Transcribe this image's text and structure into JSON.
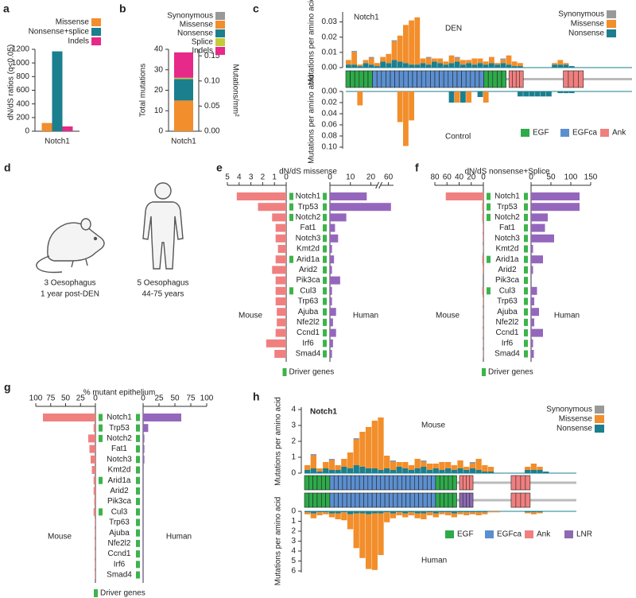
{
  "chart_data": [
    {
      "type": "bar",
      "panel": "a",
      "ylabel": "dN/dS ratios (q<0.05)",
      "categories": [
        "Notch1"
      ],
      "series": [
        {
          "name": "Missense",
          "color": "#f28e2b",
          "values": [
            120
          ]
        },
        {
          "name": "Nonsense+splice",
          "color": "#1b7f8e",
          "values": [
            1170
          ]
        },
        {
          "name": "Indels",
          "color": "#e7298a",
          "values": [
            70
          ]
        }
      ],
      "ylim": [
        0,
        1200
      ],
      "yticks": [
        0,
        200,
        400,
        600,
        800,
        1000,
        1200
      ]
    },
    {
      "type": "stacked-bar",
      "panel": "b",
      "ylabel": "Total mutations",
      "y2label": "Mutations/mm²",
      "categories": [
        "Notch1"
      ],
      "series": [
        {
          "name": "Synonymous",
          "color": "#999999",
          "values": [
            0
          ]
        },
        {
          "name": "Missense",
          "color": "#f28e2b",
          "values": [
            15
          ]
        },
        {
          "name": "Nonsense",
          "color": "#1b7f8e",
          "values": [
            10.5
          ]
        },
        {
          "name": "Splice",
          "color": "#c5c93a",
          "values": [
            0.6
          ]
        },
        {
          "name": "Indels",
          "color": "#e7298a",
          "values": [
            12.4
          ]
        }
      ],
      "ylim": [
        0,
        40
      ],
      "yticks": [
        0,
        10,
        20,
        30,
        40
      ],
      "y2lim": [
        0,
        0.163
      ],
      "y2ticks": [
        {
          "value": 0,
          "label": "0.00"
        },
        0.05,
        {
          "value": 0.1,
          "label": "0.10"
        },
        0.15
      ]
    },
    {
      "type": "mirror-histogram",
      "panel": "c",
      "gene": "Notch1",
      "ylabel": "Mutations per amino acid",
      "domains": [
        {
          "name": "EGF",
          "color": "#2eaa4a"
        },
        {
          "name": "EGFca",
          "color": "#5b8fd0"
        },
        {
          "name": "Ank",
          "color": "#f07f7f"
        }
      ],
      "top": {
        "name": "DEN",
        "ylim": [
          0,
          0.035
        ],
        "yticks": [
          {
            "value": 0,
            "label": "0.00"
          },
          0.01,
          0.02,
          0.03
        ],
        "series": [
          {
            "name": "Synonymous",
            "color": "#999999",
            "values": [
              0,
              0.001,
              0,
              0,
              0.001,
              0,
              0,
              0,
              0.001,
              0,
              0,
              0,
              0,
              0,
              0.001,
              0,
              0,
              0,
              0,
              0.001,
              0,
              0,
              0,
              0,
              0,
              0,
              0,
              0.001,
              0,
              0,
              0,
              0,
              0,
              0,
              0,
              0,
              0,
              0,
              0,
              0
            ]
          },
          {
            "name": "Missense",
            "color": "#f28e2b",
            "values": [
              0.003,
              0.008,
              0.001,
              0.002,
              0.004,
              0.002,
              0.003,
              0.006,
              0.012,
              0.017,
              0.025,
              0.029,
              0.031,
              0.003,
              0.004,
              0.002,
              0.003,
              0.002,
              0.005,
              0.002,
              0.003,
              0.002,
              0.004,
              0.003,
              0.002,
              0.004,
              0.001,
              0.002,
              0.006,
              0.003,
              0.002,
              0,
              0,
              0,
              0,
              0,
              0.001,
              0.003,
              0.001,
              0
            ]
          },
          {
            "name": "Nonsense",
            "color": "#1b7f8e",
            "values": [
              0.002,
              0.002,
              0.001,
              0.003,
              0.002,
              0.001,
              0.004,
              0.003,
              0.005,
              0.004,
              0.003,
              0.002,
              0.002,
              0.003,
              0.002,
              0.004,
              0.003,
              0.002,
              0.003,
              0.004,
              0.002,
              0.003,
              0.002,
              0.003,
              0.002,
              0.003,
              0.002,
              0.003,
              0.002,
              0.001,
              0.001,
              0,
              0,
              0,
              0,
              0,
              0.002,
              0.002,
              0.002,
              0.001
            ]
          }
        ]
      },
      "bottom": {
        "name": "Control",
        "ylim": [
          0,
          0.1
        ],
        "yticks": [
          {
            "value": 0,
            "label": "0.00"
          },
          0.02,
          0.04,
          0.06,
          0.08,
          {
            "value": 0.1,
            "label": "0.10"
          }
        ],
        "series": [
          {
            "color": "#f28e2b",
            "values": [
              0,
              0,
              0.025,
              0,
              0,
              0,
              0,
              0,
              0,
              0.055,
              0.098,
              0.052,
              0,
              0,
              0,
              0,
              0,
              0,
              0,
              0.02,
              0,
              0.02,
              0,
              0,
              0.02,
              0,
              0,
              0,
              0,
              0,
              0,
              0,
              0,
              0,
              0,
              0,
              0,
              0,
              0,
              0
            ]
          },
          {
            "color": "#1b7f8e",
            "values": [
              0,
              0,
              0,
              0,
              0,
              0,
              0,
              0,
              0,
              0,
              0,
              0,
              0,
              0,
              0,
              0,
              0,
              0,
              0.02,
              0,
              0.02,
              0,
              0,
              0.01,
              0,
              0,
              0,
              0,
              0,
              0,
              0.009,
              0.009,
              0.009,
              0.009,
              0.009,
              0.009,
              0,
              0.003,
              0.003,
              0.003
            ]
          }
        ]
      }
    },
    {
      "type": "butterfly",
      "panel": "e",
      "title": "dN/dS missense",
      "driver_legend": "Driver genes",
      "driver_color": "#3cb44b",
      "genes": [
        "Notch1",
        "Trp53",
        "Notch2",
        "Fat1",
        "Notch3",
        "Kmt2d",
        "Arid1a",
        "Arid2",
        "Pik3ca",
        "Cul3",
        "Trp63",
        "Ajuba",
        "Nfe2l2",
        "Ccnd1",
        "Irf6",
        "Smad4"
      ],
      "left": {
        "name": "Mouse",
        "color": "#f08080",
        "xlim": [
          0,
          5
        ],
        "xticks": [
          5,
          4,
          3,
          2,
          1,
          0
        ],
        "values": [
          4.2,
          2.4,
          1.2,
          0.9,
          0.9,
          0.7,
          0.9,
          1.2,
          0.9,
          0.9,
          0.9,
          0.8,
          0.8,
          0.9,
          1.7,
          1.0
        ],
        "drivers": [
          true,
          true,
          true,
          false,
          false,
          false,
          true,
          false,
          false,
          true,
          false,
          false,
          false,
          false,
          false,
          false
        ]
      },
      "right": {
        "name": "Human",
        "color": "#9467bd",
        "xlim": [
          0,
          62
        ],
        "break": [
          23,
          57
        ],
        "xticks": [
          0,
          10,
          20,
          60
        ],
        "values": [
          18,
          61,
          8,
          2.5,
          4,
          1,
          2,
          1,
          5,
          1,
          1,
          3,
          1.5,
          3,
          1.5,
          1
        ],
        "drivers": [
          true,
          true,
          true,
          true,
          true,
          true,
          true,
          true,
          true,
          true,
          true,
          true,
          true,
          true,
          true,
          true
        ]
      }
    },
    {
      "type": "butterfly",
      "panel": "f",
      "title": "dN/dS nonsense+Splice",
      "driver_legend": "Driver genes",
      "driver_color": "#3cb44b",
      "genes": [
        "Notch1",
        "Trp53",
        "Notch2",
        "Fat1",
        "Notch3",
        "Kmt2d",
        "Arid1a",
        "Arid2",
        "Pik3ca",
        "Cul3",
        "Trp63",
        "Ajuba",
        "Nfe2l2",
        "Ccnd1",
        "Irf6",
        "Smad4"
      ],
      "left": {
        "name": "Mouse",
        "color": "#f08080",
        "xlim": [
          0,
          80
        ],
        "xticks": [
          80,
          60,
          40,
          20,
          0
        ],
        "values": [
          62,
          2,
          2,
          1,
          1,
          0.5,
          2,
          1,
          0,
          2,
          0.5,
          0.5,
          0.5,
          0.5,
          0.5,
          0.5
        ],
        "drivers": [
          true,
          true,
          true,
          false,
          false,
          false,
          true,
          false,
          false,
          true,
          false,
          false,
          false,
          false,
          false,
          false
        ]
      },
      "right": {
        "name": "Human",
        "color": "#9467bd",
        "xlim": [
          0,
          150
        ],
        "xticks": [
          0,
          50,
          100,
          150
        ],
        "values": [
          122,
          122,
          42,
          35,
          58,
          5,
          30,
          5,
          0,
          15,
          8,
          20,
          8,
          30,
          5,
          7
        ],
        "drivers": [
          true,
          true,
          true,
          true,
          true,
          true,
          true,
          true,
          true,
          true,
          true,
          true,
          true,
          true,
          true,
          true
        ]
      }
    },
    {
      "type": "butterfly",
      "panel": "g",
      "title": "% mutant epithelium",
      "driver_legend": "Driver genes",
      "driver_color": "#3cb44b",
      "genes": [
        "Notch1",
        "Trp53",
        "Notch2",
        "Fat1",
        "Notch3",
        "Kmt2d",
        "Arid1a",
        "Arid2",
        "Pik3ca",
        "Cul3",
        "Trp63",
        "Ajuba",
        "Nfe2l2",
        "Ccnd1",
        "Irf6",
        "Smad4"
      ],
      "left": {
        "name": "Mouse",
        "color": "#f08080",
        "xlim": [
          0,
          100
        ],
        "xticks": [
          100,
          75,
          50,
          25,
          0
        ],
        "values": [
          88,
          3,
          12,
          10,
          8,
          6,
          3,
          3,
          2,
          3,
          1,
          1,
          1,
          1,
          1,
          1
        ],
        "drivers": [
          true,
          true,
          true,
          false,
          false,
          false,
          true,
          false,
          false,
          true,
          false,
          false,
          false,
          false,
          false,
          false
        ]
      },
      "right": {
        "name": "Human",
        "color": "#9467bd",
        "xlim": [
          0,
          100
        ],
        "xticks": [
          0,
          25,
          50,
          75,
          100
        ],
        "values": [
          60,
          8,
          2,
          2,
          2,
          1,
          1,
          1,
          1,
          1,
          1,
          1,
          1,
          1,
          1,
          1
        ],
        "drivers": [
          true,
          true,
          true,
          true,
          true,
          true,
          true,
          true,
          true,
          true,
          true,
          true,
          true,
          true,
          true,
          true
        ]
      }
    },
    {
      "type": "mirror-histogram",
      "panel": "h",
      "gene": "Notch1",
      "ylabel": "Mutations per amino acid",
      "domains": [
        {
          "name": "EGF",
          "color": "#2eaa4a"
        },
        {
          "name": "EGFca",
          "color": "#5b8fd0"
        },
        {
          "name": "Ank",
          "color": "#f07f7f"
        },
        {
          "name": "LNR",
          "color": "#8c6bb1"
        }
      ],
      "top": {
        "name": "Mouse",
        "ylim": [
          0,
          4
        ],
        "yticks": [
          0,
          1,
          2,
          3,
          4
        ],
        "series": [
          {
            "name": "Synonymous",
            "color": "#999999",
            "values": [
              0,
              0.1,
              0,
              0,
              0.1,
              0,
              0,
              0,
              0.1,
              0,
              0,
              0,
              0,
              0,
              0.1,
              0,
              0,
              0,
              0,
              0.1,
              0,
              0,
              0,
              0,
              0,
              0,
              0,
              0.1,
              0,
              0,
              0,
              0,
              0,
              0,
              0,
              0,
              0,
              0,
              0,
              0
            ]
          },
          {
            "name": "Missense",
            "color": "#f28e2b",
            "values": [
              0.3,
              0.8,
              0.2,
              0.4,
              0.6,
              0.3,
              0.5,
              1.0,
              1.6,
              2.2,
              2.6,
              3.0,
              3.3,
              0.8,
              0.5,
              0.3,
              0.4,
              0.3,
              0.6,
              0.3,
              0.4,
              0.3,
              0.5,
              0.4,
              0.3,
              0.5,
              0.2,
              0.3,
              0.7,
              0.4,
              0.3,
              0,
              0,
              0,
              0,
              0,
              0.2,
              0.4,
              0.2,
              0
            ]
          },
          {
            "name": "Nonsense",
            "color": "#1b7f8e",
            "values": [
              0.2,
              0.3,
              0.1,
              0.3,
              0.2,
              0.2,
              0.4,
              0.3,
              0.5,
              0.4,
              0.3,
              0.3,
              0.2,
              0.3,
              0.2,
              0.4,
              0.3,
              0.2,
              0.3,
              0.4,
              0.2,
              0.3,
              0.2,
              0.3,
              0.2,
              0.3,
              0.2,
              0.3,
              0.2,
              0.1,
              0.1,
              0,
              0,
              0,
              0,
              0,
              0.2,
              0.2,
              0.2,
              0.1
            ]
          }
        ]
      },
      "bottom": {
        "name": "Human",
        "ylim": [
          0,
          6
        ],
        "yticks": [
          0,
          1,
          2,
          3,
          4,
          5,
          6
        ],
        "series": [
          {
            "color": "#f28e2b",
            "values": [
              0.2,
              0.5,
              0.3,
              0.2,
              0.4,
              0.6,
              0.8,
              1.5,
              3.5,
              4.5,
              5.5,
              5.7,
              4.2,
              1.0,
              0.5,
              0.3,
              0.4,
              0.3,
              0.5,
              0.6,
              0.3,
              0.4,
              0.2,
              0.3,
              0.4,
              0.2,
              0.3,
              0.2,
              0.3,
              0.2,
              0.1,
              0.1,
              0,
              0,
              0,
              0,
              0.1,
              0.2,
              0.1,
              0
            ]
          },
          {
            "color": "#1b7f8e",
            "values": [
              0.1,
              0.2,
              0.1,
              0.1,
              0.2,
              0.2,
              0.1,
              0.3,
              0.2,
              0.2,
              0.3,
              0.2,
              0.2,
              0.1,
              0.2,
              0.1,
              0.2,
              0.1,
              0.2,
              0.2,
              0.1,
              0.2,
              0.1,
              0.1,
              0.2,
              0.1,
              0.1,
              0.1,
              0.1,
              0.1,
              0,
              0,
              0,
              0,
              0,
              0,
              0.1,
              0.1,
              0.1,
              0
            ]
          }
        ]
      }
    }
  ],
  "illustration": {
    "panel": "d",
    "groups": [
      {
        "count": "3 Oesophagus",
        "detail": "1 year post-DEN"
      },
      {
        "count": "5 Oesophagus",
        "detail": "44-75 years"
      }
    ]
  }
}
